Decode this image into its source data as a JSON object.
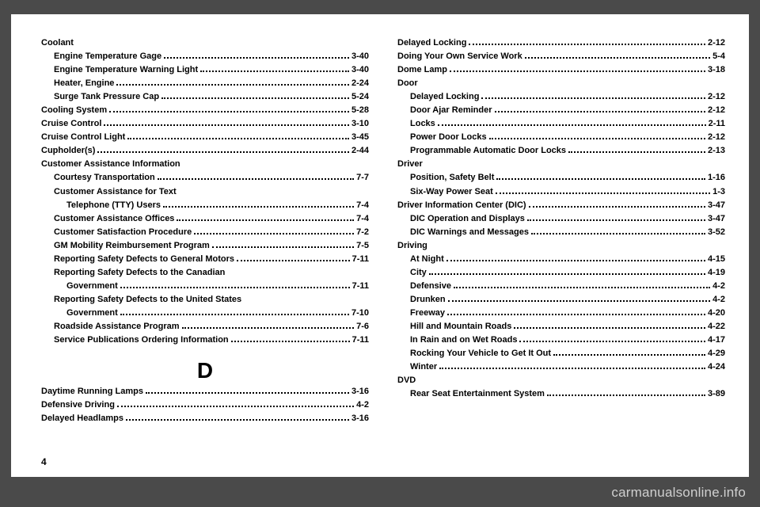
{
  "pageNumber": "4",
  "watermark": "carmanualsonline.info",
  "sectionLetter": "D",
  "leftColumn": [
    {
      "type": "heading",
      "text": "Coolant"
    },
    {
      "type": "entry",
      "indent": 1,
      "label": "Engine Temperature Gage",
      "page": "3-40"
    },
    {
      "type": "entry",
      "indent": 1,
      "label": "Engine Temperature Warning Light",
      "page": "3-40"
    },
    {
      "type": "entry",
      "indent": 1,
      "label": "Heater, Engine",
      "page": "2-24"
    },
    {
      "type": "entry",
      "indent": 1,
      "label": "Surge Tank Pressure Cap",
      "page": "5-24"
    },
    {
      "type": "entry",
      "indent": 0,
      "label": "Cooling System",
      "page": "5-28"
    },
    {
      "type": "entry",
      "indent": 0,
      "label": "Cruise Control",
      "page": "3-10"
    },
    {
      "type": "entry",
      "indent": 0,
      "label": "Cruise Control Light",
      "page": "3-45"
    },
    {
      "type": "entry",
      "indent": 0,
      "label": "Cupholder(s)",
      "page": "2-44"
    },
    {
      "type": "heading",
      "text": "Customer Assistance Information"
    },
    {
      "type": "entry",
      "indent": 1,
      "label": "Courtesy Transportation",
      "page": "7-7"
    },
    {
      "type": "heading",
      "indent": 1,
      "text": "Customer Assistance for Text"
    },
    {
      "type": "entry",
      "indent": 2,
      "label": "Telephone (TTY) Users",
      "page": "7-4"
    },
    {
      "type": "entry",
      "indent": 1,
      "label": "Customer Assistance Offices",
      "page": "7-4"
    },
    {
      "type": "entry",
      "indent": 1,
      "label": "Customer Satisfaction Procedure",
      "page": "7-2"
    },
    {
      "type": "entry",
      "indent": 1,
      "label": "GM Mobility Reimbursement Program",
      "page": "7-5"
    },
    {
      "type": "entry",
      "indent": 1,
      "label": "Reporting Safety Defects to General Motors",
      "page": "7-11"
    },
    {
      "type": "heading",
      "indent": 1,
      "text": "Reporting Safety Defects to the Canadian"
    },
    {
      "type": "entry",
      "indent": 2,
      "label": "Government",
      "page": "7-11"
    },
    {
      "type": "heading",
      "indent": 1,
      "text": "Reporting Safety Defects to the United States"
    },
    {
      "type": "entry",
      "indent": 2,
      "label": "Government",
      "page": "7-10"
    },
    {
      "type": "entry",
      "indent": 1,
      "label": "Roadside Assistance Program",
      "page": "7-6"
    },
    {
      "type": "entry",
      "indent": 1,
      "label": "Service Publications Ordering Information",
      "page": "7-11"
    },
    {
      "type": "section-letter"
    },
    {
      "type": "entry",
      "indent": 0,
      "label": "Daytime Running Lamps",
      "page": "3-16"
    },
    {
      "type": "entry",
      "indent": 0,
      "label": "Defensive Driving",
      "page": "4-2"
    },
    {
      "type": "entry",
      "indent": 0,
      "label": "Delayed Headlamps",
      "page": "3-16"
    }
  ],
  "rightColumn": [
    {
      "type": "entry",
      "indent": 0,
      "label": "Delayed Locking",
      "page": "2-12"
    },
    {
      "type": "entry",
      "indent": 0,
      "label": "Doing Your Own Service Work",
      "page": "5-4"
    },
    {
      "type": "entry",
      "indent": 0,
      "label": "Dome Lamp",
      "page": "3-18"
    },
    {
      "type": "heading",
      "text": "Door"
    },
    {
      "type": "entry",
      "indent": 1,
      "label": "Delayed Locking",
      "page": "2-12"
    },
    {
      "type": "entry",
      "indent": 1,
      "label": "Door Ajar Reminder",
      "page": "2-12"
    },
    {
      "type": "entry",
      "indent": 1,
      "label": "Locks",
      "page": "2-11"
    },
    {
      "type": "entry",
      "indent": 1,
      "label": "Power Door Locks",
      "page": "2-12"
    },
    {
      "type": "entry",
      "indent": 1,
      "label": "Programmable Automatic Door Locks",
      "page": "2-13"
    },
    {
      "type": "heading",
      "text": "Driver"
    },
    {
      "type": "entry",
      "indent": 1,
      "label": "Position, Safety Belt",
      "page": "1-16"
    },
    {
      "type": "entry",
      "indent": 1,
      "label": "Six-Way Power Seat",
      "page": "1-3"
    },
    {
      "type": "entry",
      "indent": 0,
      "label": "Driver Information Center (DIC)",
      "page": "3-47"
    },
    {
      "type": "entry",
      "indent": 1,
      "label": "DIC Operation and Displays",
      "page": "3-47"
    },
    {
      "type": "entry",
      "indent": 1,
      "label": "DIC Warnings and Messages",
      "page": "3-52"
    },
    {
      "type": "heading",
      "text": "Driving"
    },
    {
      "type": "entry",
      "indent": 1,
      "label": "At Night",
      "page": "4-15"
    },
    {
      "type": "entry",
      "indent": 1,
      "label": "City",
      "page": "4-19"
    },
    {
      "type": "entry",
      "indent": 1,
      "label": "Defensive",
      "page": "4-2"
    },
    {
      "type": "entry",
      "indent": 1,
      "label": "Drunken",
      "page": "4-2"
    },
    {
      "type": "entry",
      "indent": 1,
      "label": "Freeway",
      "page": "4-20"
    },
    {
      "type": "entry",
      "indent": 1,
      "label": "Hill and Mountain Roads",
      "page": "4-22"
    },
    {
      "type": "entry",
      "indent": 1,
      "label": "In Rain and on Wet Roads",
      "page": "4-17"
    },
    {
      "type": "entry",
      "indent": 1,
      "label": "Rocking Your Vehicle to Get It Out",
      "page": "4-29"
    },
    {
      "type": "entry",
      "indent": 1,
      "label": "Winter",
      "page": "4-24"
    },
    {
      "type": "heading",
      "text": "DVD"
    },
    {
      "type": "entry",
      "indent": 1,
      "label": "Rear Seat Entertainment System",
      "page": "3-89"
    }
  ]
}
